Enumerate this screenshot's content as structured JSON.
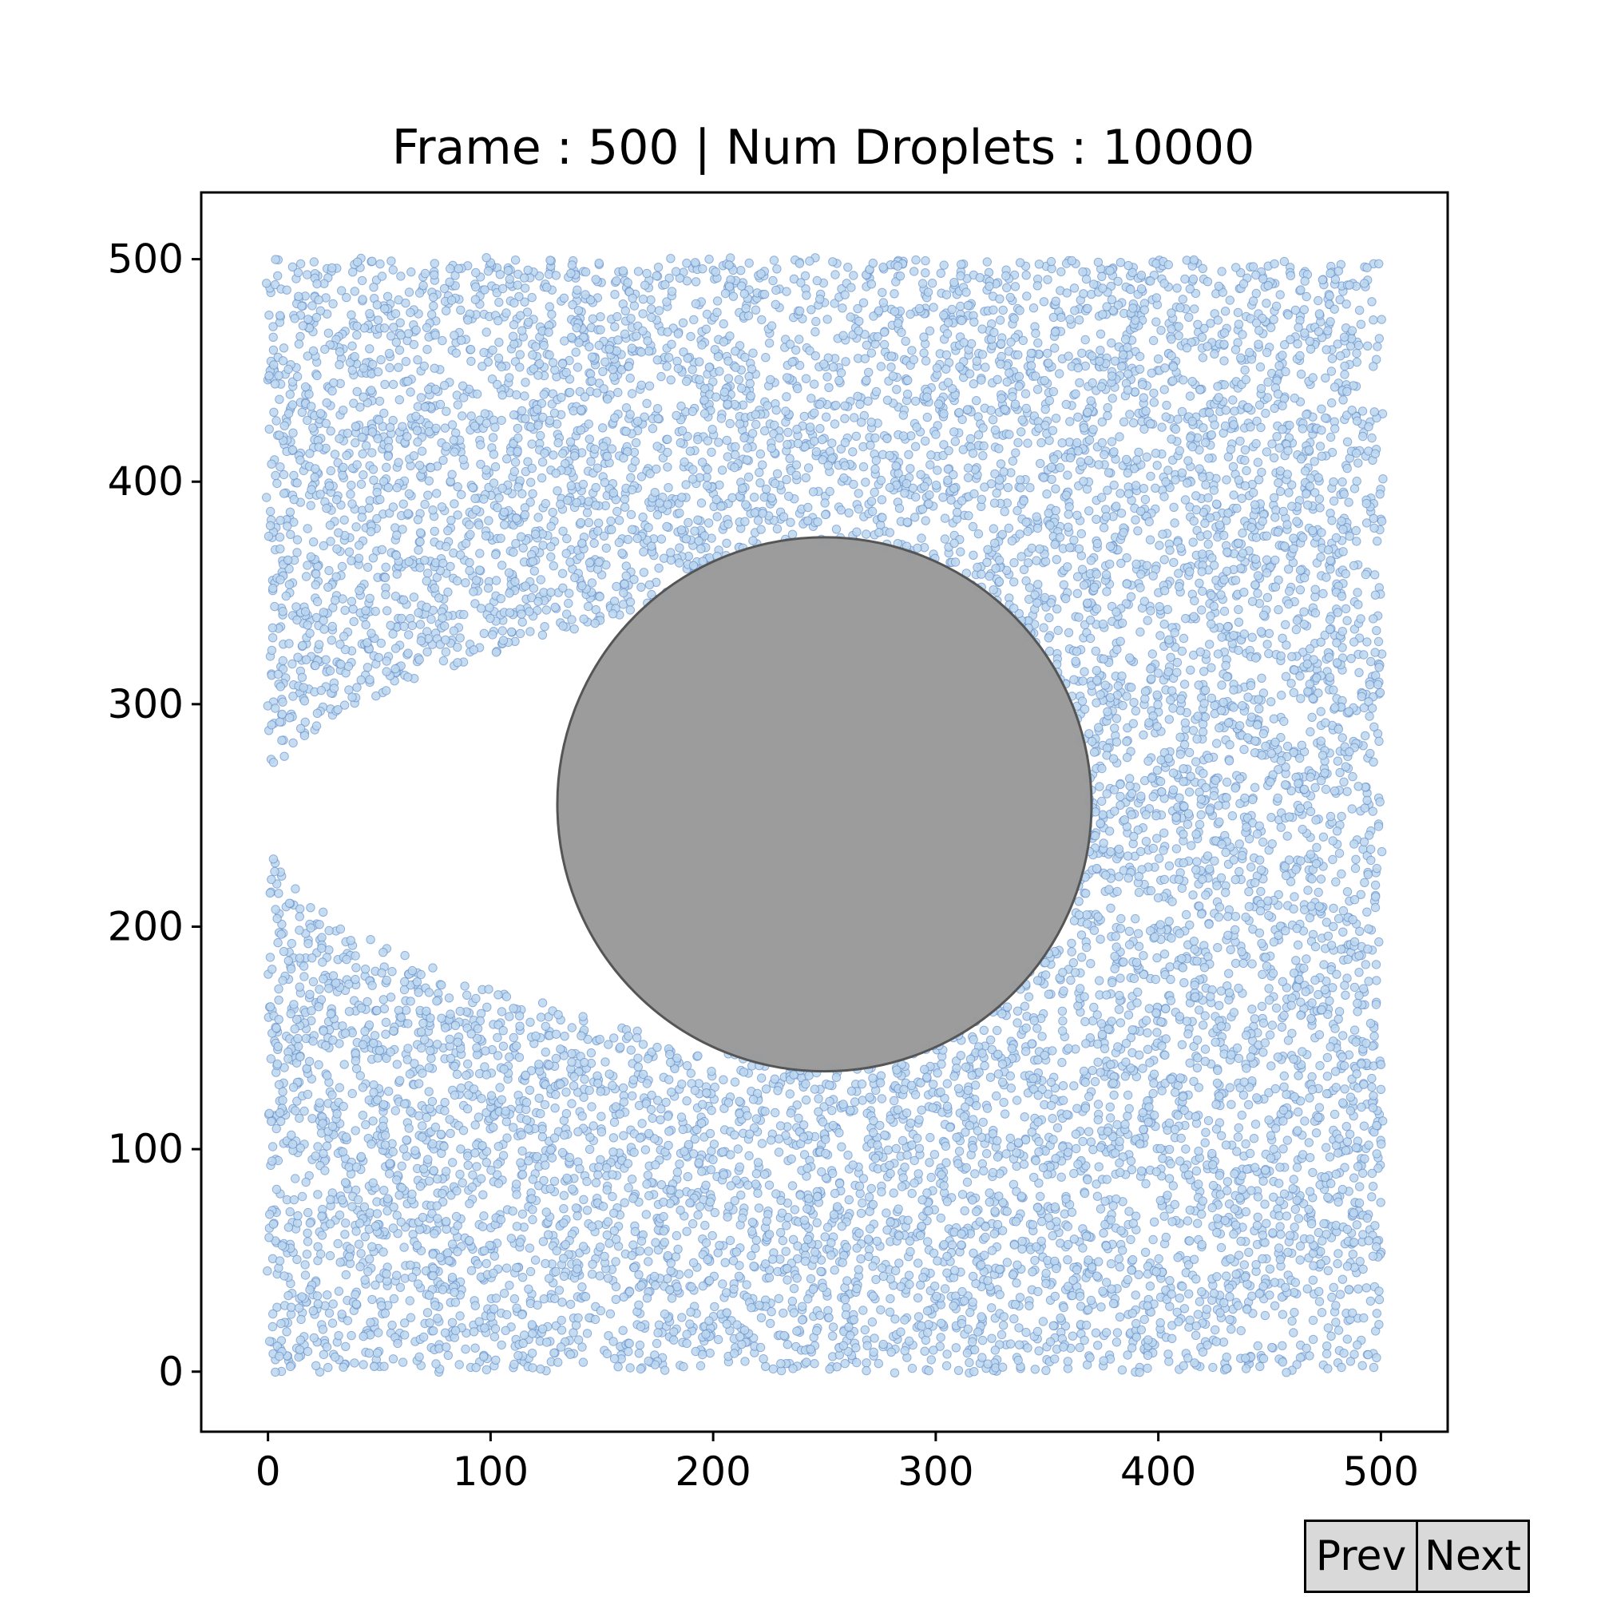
{
  "chart_data": {
    "type": "scatter",
    "title": "Frame : 500 | Num Droplets : 10000",
    "xlabel": "",
    "ylabel": "",
    "xlim": [
      -30,
      530
    ],
    "ylim": [
      -27,
      530
    ],
    "xticks": [
      0,
      100,
      200,
      300,
      400,
      500
    ],
    "yticks": [
      0,
      100,
      200,
      300,
      400,
      500
    ],
    "xtick_labels": [
      "0",
      "100",
      "200",
      "300",
      "400",
      "500"
    ],
    "ytick_labels": [
      "0",
      "100",
      "200",
      "300",
      "400",
      "500"
    ],
    "grid": false,
    "series": [
      {
        "kind": "droplets",
        "count": 10000,
        "x_range": [
          0,
          500
        ],
        "y_range": [
          0,
          500
        ],
        "fill_color": "#bcd7ef",
        "edge_color": "#5b86c4",
        "empty_wake": {
          "description": "droplet-free region to the left of the obstacle",
          "x_range": [
            0,
            200
          ],
          "upper_boundary_y_at_x0": 262,
          "lower_boundary_y_at_x0": 242
        }
      }
    ],
    "obstacle": {
      "shape": "circle",
      "center": [
        250,
        255
      ],
      "radius": 120,
      "fill_color": "#999999",
      "edge_color": "#555555"
    }
  },
  "controls": {
    "prev_label": "Prev",
    "next_label": "Next"
  }
}
